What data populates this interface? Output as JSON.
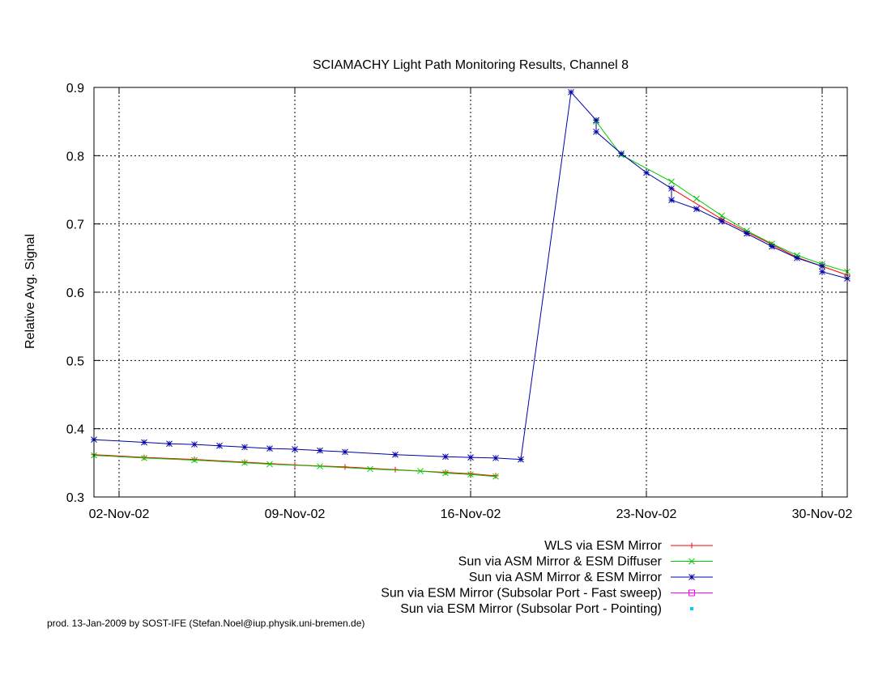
{
  "chart_data": {
    "type": "line",
    "title": "SCIAMACHY Light Path Monitoring Results, Channel 8",
    "xlabel": "",
    "ylabel": "Relative Avg. Signal",
    "x_ticks": [
      "02-Nov-02",
      "09-Nov-02",
      "16-Nov-02",
      "23-Nov-02",
      "30-Nov-02"
    ],
    "xlim": [
      "2002-11-01",
      "2002-12-01"
    ],
    "ylim": [
      0.3,
      0.9
    ],
    "y_ticks": [
      0.3,
      0.4,
      0.5,
      0.6,
      0.7,
      0.8,
      0.9
    ],
    "grid": true,
    "legend_position": "bottom-right",
    "series": [
      {
        "name": "WLS via ESM Mirror",
        "color": "#ff0000",
        "marker": "plus",
        "points": [
          [
            "2002-11-01",
            0.362
          ],
          [
            "2002-11-03",
            0.358
          ],
          [
            "2002-11-05",
            0.355
          ],
          [
            "2002-11-07",
            0.351
          ],
          [
            "2002-11-09",
            0.347
          ],
          [
            "2002-11-11",
            0.344
          ],
          [
            "2002-11-13",
            0.34
          ],
          [
            "2002-11-15",
            0.336
          ],
          [
            "2002-11-16",
            0.334
          ],
          [
            "2002-11-17",
            0.331
          ],
          [
            "2002-11-24",
            0.752
          ],
          [
            "2002-11-26",
            0.707
          ],
          [
            "2002-11-28",
            0.67
          ],
          [
            "2002-11-29",
            0.651
          ],
          [
            "2002-12-01",
            0.625
          ]
        ]
      },
      {
        "name": "Sun via ASM Mirror & ESM Diffuser",
        "color": "#00cc00",
        "marker": "cross",
        "points": [
          [
            "2002-11-01",
            0.361
          ],
          [
            "2002-11-03",
            0.357
          ],
          [
            "2002-11-05",
            0.354
          ],
          [
            "2002-11-07",
            0.35
          ],
          [
            "2002-11-08",
            0.348
          ],
          [
            "2002-11-10",
            0.345
          ],
          [
            "2002-11-12",
            0.341
          ],
          [
            "2002-11-14",
            0.338
          ],
          [
            "2002-11-15",
            0.335
          ],
          [
            "2002-11-16",
            0.333
          ],
          [
            "2002-11-17",
            0.33
          ],
          [
            "2002-11-21",
            0.85
          ],
          [
            "2002-11-22",
            0.801
          ],
          [
            "2002-11-24",
            0.762
          ],
          [
            "2002-11-25",
            0.737
          ],
          [
            "2002-11-26",
            0.712
          ],
          [
            "2002-11-27",
            0.69
          ],
          [
            "2002-11-28",
            0.671
          ],
          [
            "2002-11-29",
            0.654
          ],
          [
            "2002-11-30",
            0.641
          ],
          [
            "2002-12-01",
            0.63
          ]
        ]
      },
      {
        "name": "Sun via ASM Mirror & ESM Mirror",
        "color": "#0000a8",
        "marker": "star",
        "points": [
          [
            "2002-11-01",
            0.384
          ],
          [
            "2002-11-03",
            0.38
          ],
          [
            "2002-11-04",
            0.378
          ],
          [
            "2002-11-05",
            0.377
          ],
          [
            "2002-11-06",
            0.375
          ],
          [
            "2002-11-07",
            0.373
          ],
          [
            "2002-11-08",
            0.371
          ],
          [
            "2002-11-09",
            0.37
          ],
          [
            "2002-11-10",
            0.368
          ],
          [
            "2002-11-11",
            0.366
          ],
          [
            "2002-11-13",
            0.362
          ],
          [
            "2002-11-15",
            0.359
          ],
          [
            "2002-11-16",
            0.358
          ],
          [
            "2002-11-17",
            0.357
          ],
          [
            "2002-11-18",
            0.355
          ],
          [
            "2002-11-20",
            0.893
          ],
          [
            "2002-11-21",
            0.852
          ],
          [
            "2002-11-21",
            0.835
          ],
          [
            "2002-11-22",
            0.803
          ],
          [
            "2002-11-23",
            0.775
          ],
          [
            "2002-11-24",
            0.752
          ],
          [
            "2002-11-24",
            0.735
          ],
          [
            "2002-11-25",
            0.722
          ],
          [
            "2002-11-26",
            0.704
          ],
          [
            "2002-11-27",
            0.686
          ],
          [
            "2002-11-28",
            0.667
          ],
          [
            "2002-11-29",
            0.65
          ],
          [
            "2002-11-30",
            0.638
          ],
          [
            "2002-11-30",
            0.63
          ],
          [
            "2002-12-01",
            0.62
          ]
        ]
      },
      {
        "name": "Sun via ESM Mirror (Subsolar Port - Fast sweep)",
        "color": "#ff00ff",
        "marker": "square",
        "points": []
      },
      {
        "name": "Sun via ESM Mirror (Subsolar Port - Pointing)",
        "color": "#00ccff",
        "marker": "dot",
        "points": []
      }
    ]
  },
  "footer": {
    "credit": "prod. 13-Jan-2009 by SOST-IFE (Stefan.Noel@iup.physik.uni-bremen.de)"
  }
}
